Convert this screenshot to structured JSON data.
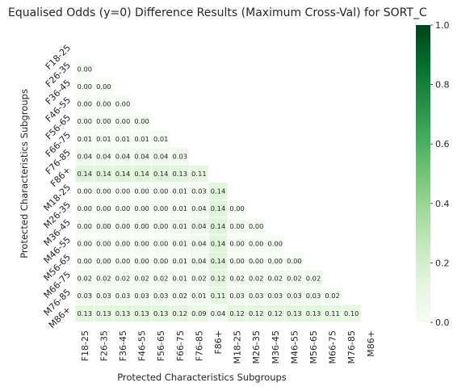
{
  "chart_data": {
    "type": "heatmap",
    "title": "Equalised Odds (y=0)  Difference Results (Maximum Cross-Val) for SORT_C",
    "xlabel": "Protected Characteristics Subgroups",
    "ylabel": "Protected Characteristics Subgroups",
    "categories": [
      "F18-25",
      "F26-35",
      "F36-45",
      "F46-55",
      "F56-65",
      "F66-75",
      "F76-85",
      "F86+",
      "M18-25",
      "M26-35",
      "M36-45",
      "M46-55",
      "M56-65",
      "M66-75",
      "M76-85",
      "M86+"
    ],
    "mask": "upper-triangle-including-diagonal",
    "values": [
      [],
      [
        "0.00"
      ],
      [
        "0.00",
        "0.00"
      ],
      [
        "0.00",
        "0.00",
        "0.00"
      ],
      [
        "0.00",
        "0.00",
        "0.00",
        "0.00"
      ],
      [
        "0.01",
        "0.01",
        "0.01",
        "0.01",
        "0.01"
      ],
      [
        "0.04",
        "0.04",
        "0.04",
        "0.04",
        "0.04",
        "0.03"
      ],
      [
        "0.14",
        "0.14",
        "0.14",
        "0.14",
        "0.14",
        "0.13",
        "0.11"
      ],
      [
        "0.00",
        "0.00",
        "0.00",
        "0.00",
        "0.00",
        "0.01",
        "0.03",
        "0.14"
      ],
      [
        "0.00",
        "0.00",
        "0.00",
        "0.00",
        "0.00",
        "0.01",
        "0.04",
        "0.14",
        "0.00"
      ],
      [
        "0.00",
        "0.00",
        "0.00",
        "0.00",
        "0.00",
        "0.01",
        "0.04",
        "0.14",
        "0.00",
        "0.00"
      ],
      [
        "0.00",
        "0.00",
        "0.00",
        "0.00",
        "0.00",
        "0.01",
        "0.04",
        "0.14",
        "0.00",
        "0.00",
        "0.00"
      ],
      [
        "0.00",
        "0.00",
        "0.00",
        "0.00",
        "0.00",
        "0.01",
        "0.04",
        "0.14",
        "0.00",
        "0.00",
        "0.00",
        "0.00"
      ],
      [
        "0.02",
        "0.02",
        "0.02",
        "0.02",
        "0.02",
        "0.01",
        "0.02",
        "0.12",
        "0.02",
        "0.02",
        "0.02",
        "0.02",
        "0.02"
      ],
      [
        "0.03",
        "0.03",
        "0.03",
        "0.03",
        "0.03",
        "0.02",
        "0.01",
        "0.11",
        "0.03",
        "0.03",
        "0.03",
        "0.03",
        "0.03",
        "0.02"
      ],
      [
        "0.13",
        "0.13",
        "0.13",
        "0.13",
        "0.13",
        "0.12",
        "0.09",
        "0.04",
        "0.12",
        "0.12",
        "0.12",
        "0.13",
        "0.13",
        "0.11",
        "0.10"
      ]
    ],
    "colorbar": {
      "range": [
        0.0,
        1.0
      ],
      "ticks": [
        "0.0",
        "0.2",
        "0.4",
        "0.6",
        "0.8",
        "1.0"
      ],
      "colormap": "Greens"
    },
    "colors": {
      "low": "#f7fcf5",
      "high": "#00441b"
    }
  }
}
